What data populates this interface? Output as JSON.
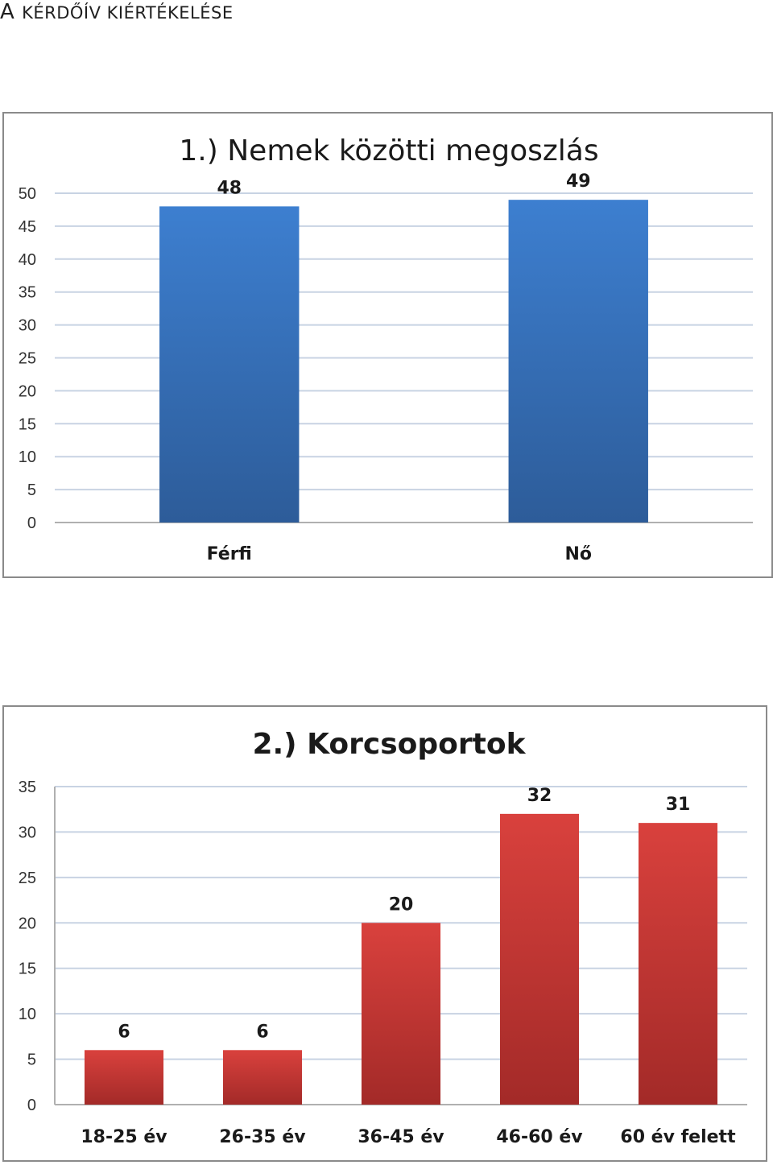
{
  "page": {
    "heading_first": "A",
    "heading_rest": "KÉRDŐÍV KIÉRTÉKELÉSE"
  },
  "colors": {
    "chart1_bar_top": "#3d7fd0",
    "chart1_bar_bottom": "#2d5c99",
    "chart2_bar_top": "#d9413d",
    "chart2_bar_bottom": "#a32a28",
    "gridline": "#c8d3e3"
  },
  "chart_data": [
    {
      "type": "bar",
      "title": "1.) Nemek közötti megoszlás",
      "categories": [
        "Férfi",
        "Nő"
      ],
      "values": [
        48,
        49
      ],
      "ylim": [
        0,
        50
      ],
      "yticks": [
        0,
        5,
        10,
        15,
        20,
        25,
        30,
        35,
        40,
        45,
        50
      ],
      "grid": true,
      "legend": "none"
    },
    {
      "type": "bar",
      "title": "2.) Korcsoportok",
      "categories": [
        "18-25 év",
        "26-35 év",
        "36-45 év",
        "46-60 év",
        "60 év felett"
      ],
      "values": [
        6,
        6,
        20,
        32,
        31
      ],
      "ylim": [
        0,
        35
      ],
      "yticks": [
        0,
        5,
        10,
        15,
        20,
        25,
        30,
        35
      ],
      "grid": true,
      "legend": "none"
    }
  ]
}
